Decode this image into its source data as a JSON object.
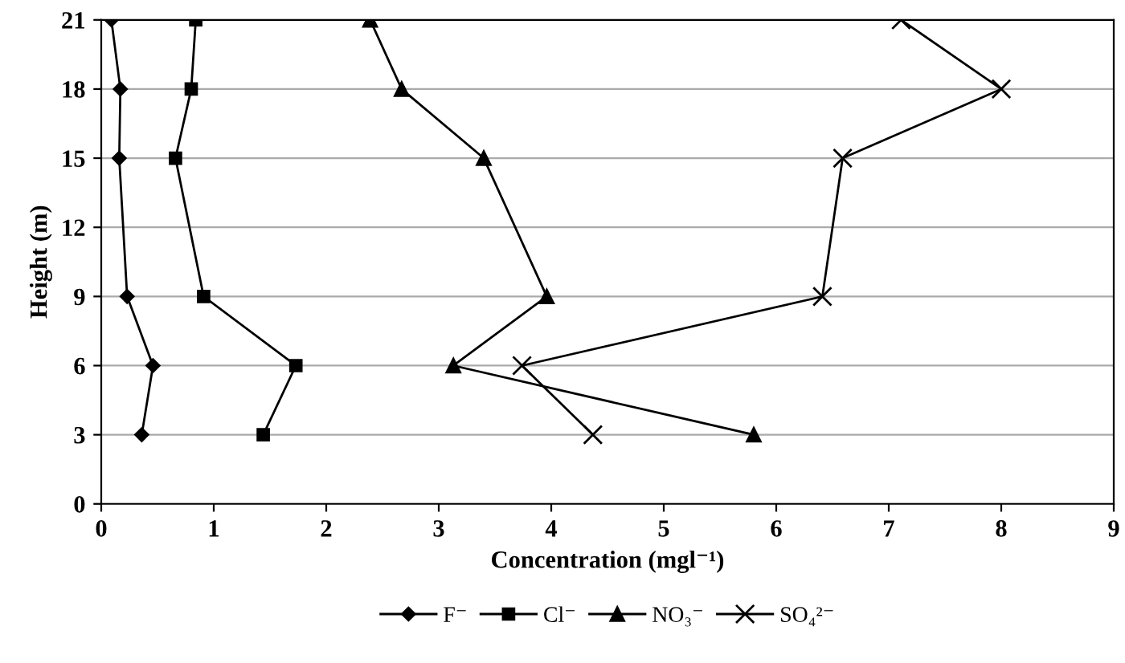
{
  "chart_data": {
    "type": "line",
    "xlabel": "Concentration (mgl⁻¹)",
    "ylabel": "Height (m)",
    "xlim": [
      0,
      9
    ],
    "xticks": [
      0,
      1,
      2,
      3,
      4,
      5,
      6,
      7,
      8,
      9
    ],
    "ylim": [
      0,
      21
    ],
    "yticks": [
      0,
      3,
      6,
      9,
      12,
      15,
      18,
      21
    ],
    "grid": "y",
    "legend": "bottom",
    "series": [
      {
        "name": "F⁻",
        "color": "#000000",
        "marker": "diamond",
        "x": [
          0.36,
          0.46,
          0.23,
          0.16,
          0.17,
          0.09
        ],
        "values": [
          3,
          6,
          9,
          15,
          18,
          21
        ]
      },
      {
        "name": "Cl⁻",
        "color": "#000000",
        "marker": "square",
        "x": [
          1.44,
          1.73,
          0.91,
          0.66,
          0.8,
          0.84
        ],
        "values": [
          3,
          6,
          9,
          15,
          18,
          21
        ]
      },
      {
        "name": "NO₃⁻",
        "color": "#000000",
        "marker": "triangle",
        "x": [
          5.8,
          3.13,
          3.96,
          3.4,
          2.67,
          2.39
        ],
        "values": [
          3,
          6,
          9,
          15,
          18,
          21
        ]
      },
      {
        "name": "SO₄²⁻",
        "color": "#000000",
        "marker": "cross",
        "x": [
          4.37,
          3.74,
          6.41,
          6.59,
          8.0,
          7.11
        ],
        "values": [
          3,
          6,
          9,
          15,
          18,
          21
        ]
      }
    ]
  }
}
